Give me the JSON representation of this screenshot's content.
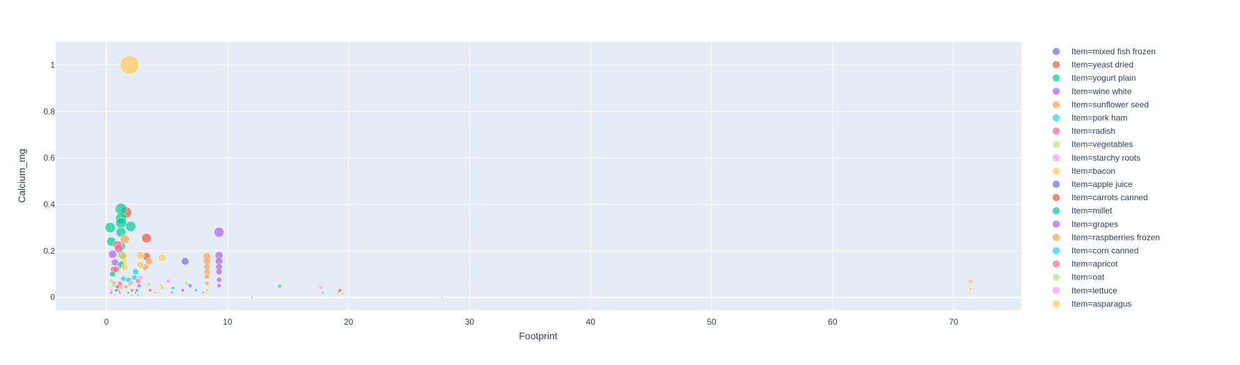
{
  "chart_data": {
    "type": "scatter",
    "title": "",
    "xlabel": "Footprint",
    "ylabel": "Calcium_mg",
    "xlim": [
      -4.2,
      75.6
    ],
    "ylim": [
      -0.055,
      1.1
    ],
    "xticks": [
      0,
      10,
      20,
      30,
      40,
      50,
      60,
      70
    ],
    "yticks": [
      0,
      0.2,
      0.4,
      0.6,
      0.8,
      1
    ],
    "grid": true,
    "legend_placement": "right",
    "plot_background": "#e5ecf6",
    "series": [
      {
        "name": "Item=mixed fish frozen",
        "color": "#636efa",
        "points": [
          [
            6.5,
            0.155
          ],
          [
            6.3,
            0.03
          ]
        ]
      },
      {
        "name": "Item=yeast dried",
        "color": "#ef553b",
        "points": [
          [
            1.6,
            0.365
          ],
          [
            3.3,
            0.255
          ],
          [
            3.3,
            0.175
          ],
          [
            0.6,
            0.12
          ],
          [
            1.0,
            0.03
          ],
          [
            19.2,
            0.025
          ]
        ]
      },
      {
        "name": "Item=yogurt plain",
        "color": "#00cc96",
        "points": [
          [
            1.2,
            0.38
          ],
          [
            1.2,
            0.34
          ],
          [
            1.2,
            0.32
          ],
          [
            0.3,
            0.3
          ],
          [
            2.0,
            0.305
          ],
          [
            1.2,
            0.28
          ],
          [
            0.4,
            0.24
          ],
          [
            1.2,
            0.22
          ],
          [
            1.3,
            0.18
          ],
          [
            0.5,
            0.1
          ]
        ]
      },
      {
        "name": "Item=wine white",
        "color": "#ab63fa",
        "points": [
          [
            9.3,
            0.28
          ],
          [
            9.3,
            0.18
          ],
          [
            9.3,
            0.155
          ],
          [
            9.3,
            0.13
          ],
          [
            9.3,
            0.11
          ],
          [
            9.3,
            0.075
          ],
          [
            9.3,
            0.05
          ],
          [
            0.5,
            0.185
          ],
          [
            0.7,
            0.15
          ],
          [
            6.9,
            0.05
          ]
        ]
      },
      {
        "name": "Item=sunflower seed",
        "color": "#ffa15a",
        "points": [
          [
            8.3,
            0.175
          ],
          [
            8.3,
            0.155
          ],
          [
            8.3,
            0.13
          ],
          [
            8.3,
            0.11
          ],
          [
            8.3,
            0.09
          ],
          [
            8.3,
            0.06
          ],
          [
            3.5,
            0.155
          ],
          [
            3.2,
            0.13
          ],
          [
            1.5,
            0.25
          ],
          [
            1.2,
            0.05
          ]
        ]
      },
      {
        "name": "Item=pork ham",
        "color": "#19d3f3",
        "points": [
          [
            2.4,
            0.11
          ],
          [
            2.3,
            0.085
          ],
          [
            1.8,
            0.075
          ],
          [
            14.3,
            0.048
          ],
          [
            17.9,
            0.02
          ]
        ]
      },
      {
        "name": "Item=radish",
        "color": "#ff6692",
        "points": [
          [
            0.9,
            0.225
          ],
          [
            1.0,
            0.21
          ],
          [
            0.8,
            0.12
          ],
          [
            0.6,
            0.06
          ],
          [
            2.0,
            0.06
          ]
        ]
      },
      {
        "name": "Item=vegetables",
        "color": "#b6e880",
        "points": [
          [
            3.5,
            0.055
          ],
          [
            6.6,
            0.06
          ],
          [
            1.5,
            0.04
          ],
          [
            0.4,
            0.07
          ]
        ]
      },
      {
        "name": "Item=starchy roots",
        "color": "#ff97ff",
        "points": [
          [
            2.8,
            0.085
          ],
          [
            5.1,
            0.07
          ],
          [
            17.7,
            0.042
          ],
          [
            0.9,
            0.03
          ]
        ]
      },
      {
        "name": "Item=bacon",
        "color": "#fecb52",
        "points": [
          [
            1.9,
            1.0
          ],
          [
            2.8,
            0.18
          ],
          [
            4.6,
            0.17
          ],
          [
            1.4,
            0.175
          ],
          [
            1.4,
            0.15
          ],
          [
            2.8,
            0.14
          ],
          [
            71.4,
            0.068
          ],
          [
            71.4,
            0.035
          ],
          [
            4.5,
            0.05
          ]
        ]
      },
      {
        "name": "Item=apple juice",
        "color": "#636efa",
        "points": [
          [
            12.0,
            0.0
          ],
          [
            27.7,
            0.0
          ],
          [
            2.5,
            0.03
          ],
          [
            0.4,
            0.02
          ]
        ]
      },
      {
        "name": "Item=carrots canned",
        "color": "#ef553b",
        "points": [
          [
            3.6,
            0.03
          ],
          [
            2.1,
            0.03
          ],
          [
            0.9,
            0.045
          ],
          [
            19.3,
            0.03
          ]
        ]
      },
      {
        "name": "Item=millet",
        "color": "#00cc96",
        "points": [
          [
            1.8,
            0.02
          ],
          [
            0.8,
            0.03
          ],
          [
            2.6,
            0.01
          ],
          [
            1.2,
            0.14
          ]
        ]
      },
      {
        "name": "Item=grapes",
        "color": "#ab63fa",
        "points": [
          [
            2.7,
            0.05
          ],
          [
            1.1,
            0.02
          ],
          [
            2.1,
            0.01
          ],
          [
            5.4,
            0.02
          ]
        ]
      },
      {
        "name": "Item=raspberries frozen",
        "color": "#ffa15a",
        "points": [
          [
            1.6,
            0.045
          ],
          [
            4.1,
            0.02
          ],
          [
            5.2,
            0.01
          ],
          [
            19.5,
            0.015
          ]
        ]
      },
      {
        "name": "Item=corn canned",
        "color": "#19d3f3",
        "points": [
          [
            1.4,
            0.08
          ],
          [
            2.4,
            0.02
          ],
          [
            5.5,
            0.04
          ],
          [
            7.4,
            0.03
          ]
        ]
      },
      {
        "name": "Item=apricot",
        "color": "#ff6692",
        "points": [
          [
            1.1,
            0.06
          ],
          [
            2.6,
            0.07
          ],
          [
            0.7,
            0.01
          ],
          [
            8.0,
            0.02
          ]
        ]
      },
      {
        "name": "Item=oat",
        "color": "#b6e880",
        "points": [
          [
            1.9,
            0.055
          ],
          [
            3.4,
            0.015
          ],
          [
            8.3,
            0.03
          ],
          [
            0.6,
            0.05
          ]
        ]
      },
      {
        "name": "Item=lettuce",
        "color": "#ff97ff",
        "points": [
          [
            1.2,
            0.04
          ],
          [
            4.0,
            0.02
          ],
          [
            8.2,
            0.01
          ],
          [
            0.4,
            0.03
          ]
        ]
      },
      {
        "name": "Item=asparagus",
        "color": "#fecb52",
        "points": [
          [
            1.5,
            0.13
          ],
          [
            4.6,
            0.04
          ],
          [
            8.3,
            0.02
          ],
          [
            0.9,
            0.01
          ]
        ]
      }
    ]
  }
}
